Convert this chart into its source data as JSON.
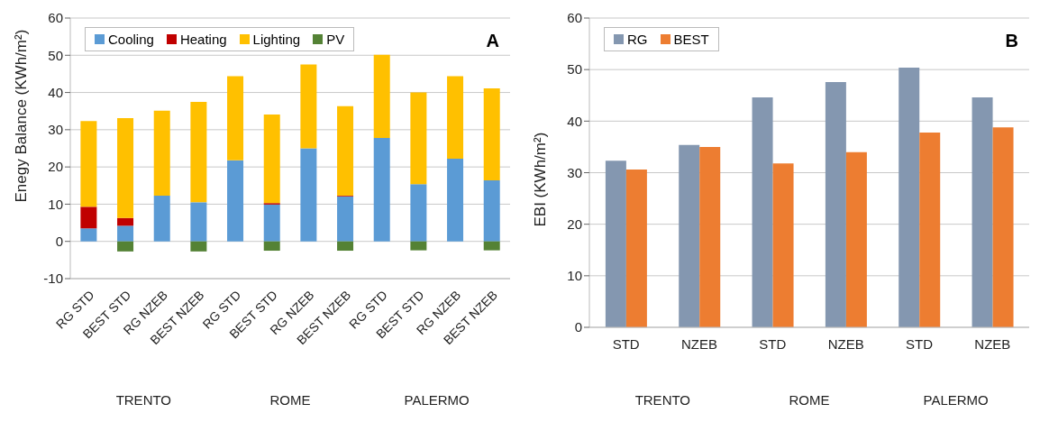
{
  "chart_data": [
    {
      "type": "bar",
      "title": "A",
      "ylabel": "Enegy Balance (KWh/m²)",
      "stacked": true,
      "categories": [
        "RG STD",
        "BEST STD",
        "RG NZEB",
        "BEST NZEB",
        "RG STD",
        "BEST STD",
        "RG NZEB",
        "BEST NZEB",
        "RG STD",
        "BEST STD",
        "RG NZEB",
        "BEST NZEB"
      ],
      "series": [
        {
          "name": "Cooling",
          "color": "#5b9bd5",
          "values": [
            3.5,
            4.2,
            12.3,
            10.5,
            21.8,
            9.9,
            25,
            12.1,
            27.8,
            15.4,
            22.2,
            16.4
          ]
        },
        {
          "name": "Heating",
          "color": "#c00000",
          "values": [
            5.8,
            2.1,
            null,
            null,
            null,
            0.4,
            null,
            0.2,
            null,
            null,
            null,
            null
          ]
        },
        {
          "name": "Lighting",
          "color": "#ffc000",
          "values": [
            23,
            26.8,
            22.8,
            27,
            22.6,
            23.8,
            22.5,
            24,
            22.3,
            24.6,
            22.2,
            24.7
          ]
        },
        {
          "name": "PV",
          "color": "#548235",
          "values": [
            null,
            -2.7,
            null,
            -2.7,
            null,
            -2.5,
            null,
            -2.5,
            null,
            -2.4,
            null,
            -2.4
          ]
        }
      ],
      "ylim": [
        -10,
        60
      ],
      "yticks": [
        -10,
        0,
        10,
        20,
        30,
        40,
        50,
        60
      ],
      "grid": "y",
      "legend": "top left",
      "annotations": [
        "TRENTO",
        "ROME",
        "PALERMO"
      ]
    },
    {
      "type": "bar",
      "title": "B",
      "ylabel": "EBI (KWh/m²)",
      "categories": [
        "STD",
        "NZEB",
        "STD",
        "NZEB",
        "STD",
        "NZEB"
      ],
      "series": [
        {
          "name": "RG",
          "color": "#8497b0",
          "values": [
            32.3,
            35.4,
            44.6,
            47.6,
            50.4,
            44.6
          ]
        },
        {
          "name": "BEST",
          "color": "#ed7d31",
          "values": [
            30.6,
            35,
            31.8,
            34,
            37.8,
            38.8
          ]
        }
      ],
      "ylim": [
        0,
        60
      ],
      "yticks": [
        0,
        10,
        20,
        30,
        40,
        50,
        60
      ],
      "grid": "y",
      "legend": "top left",
      "annotations": [
        "TRENTO",
        "ROME",
        "PALERMO"
      ]
    }
  ]
}
